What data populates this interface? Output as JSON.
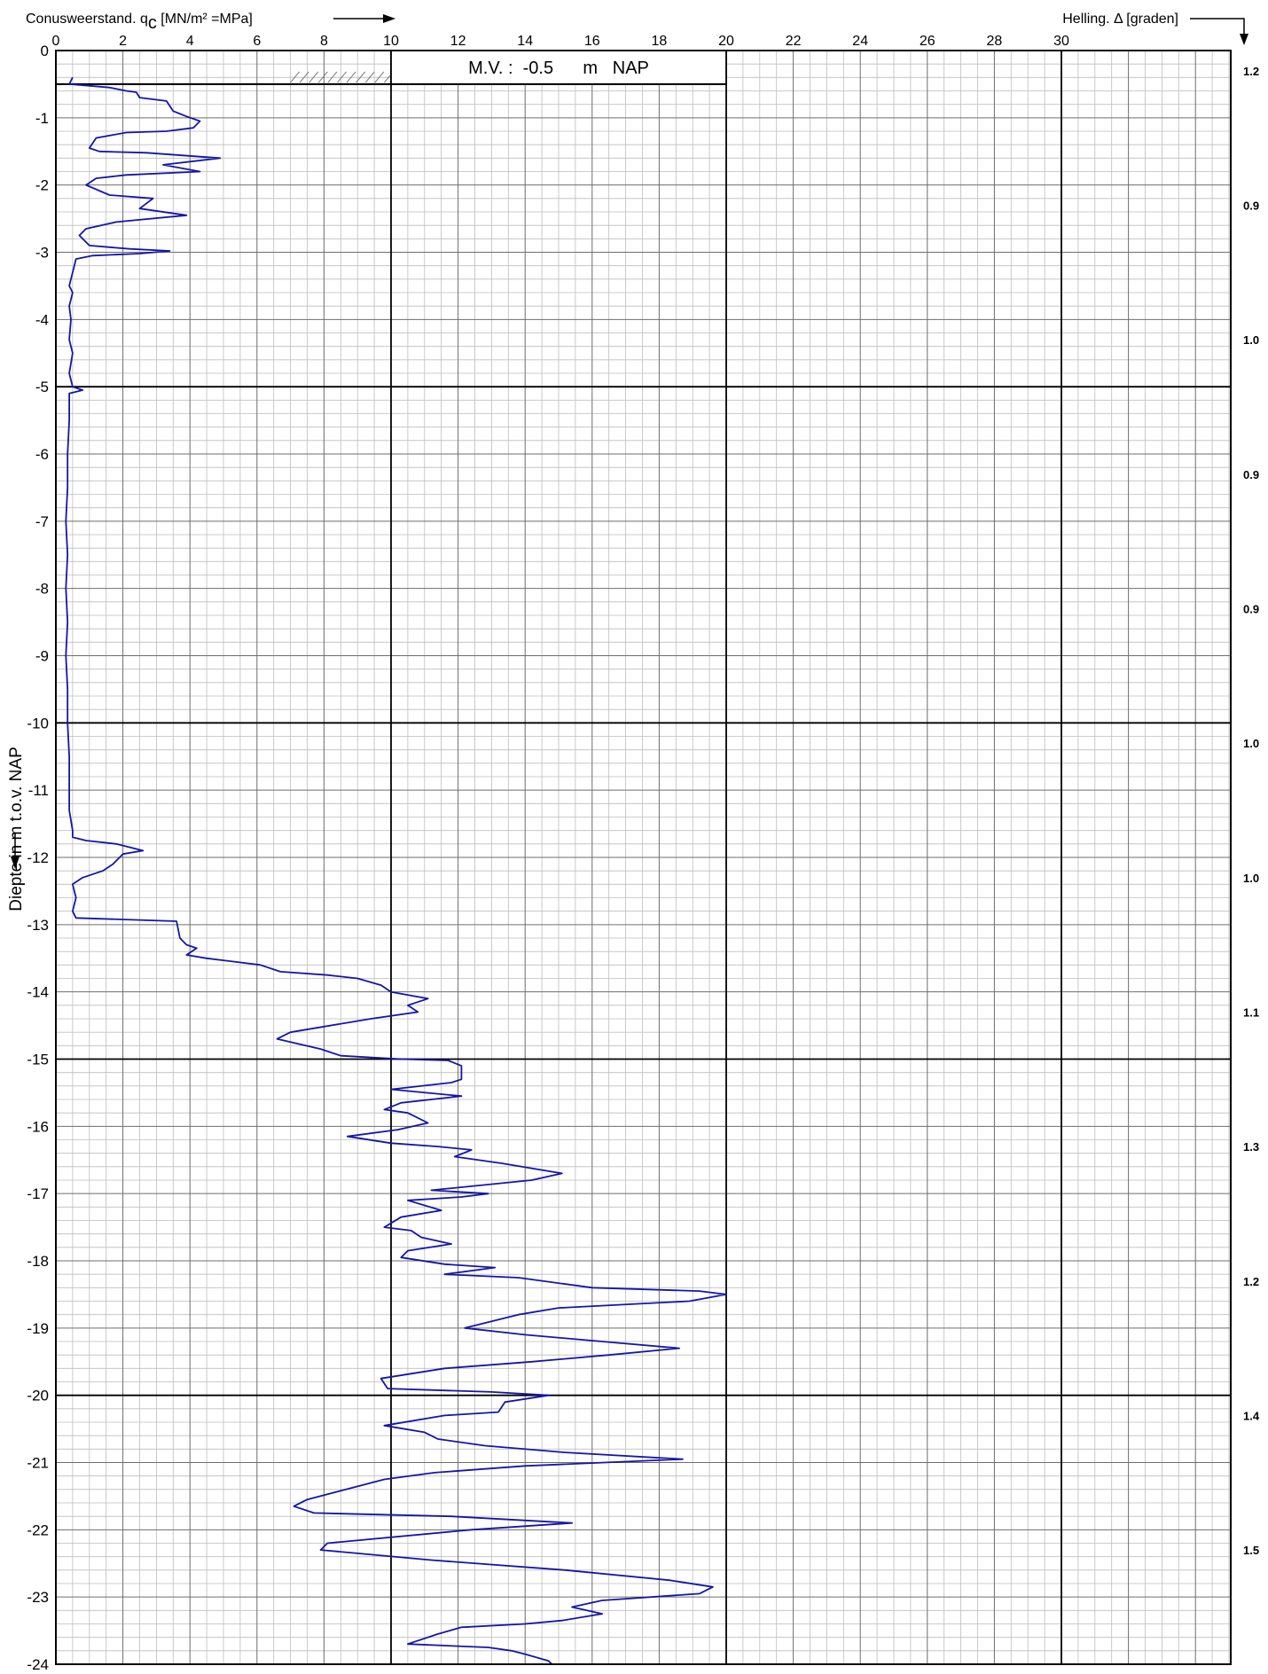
{
  "chart_data": {
    "type": "line",
    "top_axis_label": "Conusweerstand. q",
    "top_axis_subscript": "c",
    "top_axis_units": " [MN/m² =MPa]",
    "right_axis_label": "Helling. Δ [graden]",
    "y_axis_label": "Diepte in m t.o.v. NAP",
    "mv_label": "M.V. :  -0.5      m   NAP",
    "mv_depth": -0.5,
    "x_ticks": [
      0,
      2,
      4,
      6,
      8,
      10,
      12,
      14,
      16,
      18,
      20,
      22,
      24,
      26,
      28,
      30
    ],
    "y_ticks": [
      0,
      -1,
      -2,
      -3,
      -4,
      -5,
      -6,
      -7,
      -8,
      -9,
      -10,
      -11,
      -12,
      -13,
      -14,
      -15,
      -16,
      -17,
      -18,
      -19,
      -20,
      -21,
      -22,
      -23,
      -24
    ],
    "xlim": [
      0,
      35
    ],
    "ylim": [
      0,
      -24
    ],
    "grid": true,
    "helling_values": [
      {
        "depth": -0.3,
        "value": "1.2"
      },
      {
        "depth": -2.3,
        "value": "0.9"
      },
      {
        "depth": -4.3,
        "value": "1.0"
      },
      {
        "depth": -6.3,
        "value": "0.9"
      },
      {
        "depth": -8.3,
        "value": "0.9"
      },
      {
        "depth": -10.3,
        "value": "1.0"
      },
      {
        "depth": -12.3,
        "value": "1.0"
      },
      {
        "depth": -14.3,
        "value": "1.1"
      },
      {
        "depth": -16.3,
        "value": "1.3"
      },
      {
        "depth": -18.3,
        "value": "1.2"
      },
      {
        "depth": -20.3,
        "value": "1.4"
      },
      {
        "depth": -22.3,
        "value": "1.5"
      }
    ],
    "series": [
      {
        "color": "#1515a8",
        "points": [
          [
            0.5,
            -0.4
          ],
          [
            0.4,
            -0.5
          ],
          [
            1.6,
            -0.55
          ],
          [
            2.1,
            -0.6
          ],
          [
            2.4,
            -0.62
          ],
          [
            2.5,
            -0.7
          ],
          [
            3.3,
            -0.75
          ],
          [
            3.5,
            -0.9
          ],
          [
            3.9,
            -0.98
          ],
          [
            4.3,
            -1.05
          ],
          [
            4.1,
            -1.15
          ],
          [
            3.3,
            -1.2
          ],
          [
            2.1,
            -1.22
          ],
          [
            1.2,
            -1.3
          ],
          [
            1.0,
            -1.45
          ],
          [
            1.3,
            -1.5
          ],
          [
            2.7,
            -1.52
          ],
          [
            4.9,
            -1.6
          ],
          [
            3.2,
            -1.7
          ],
          [
            4.3,
            -1.8
          ],
          [
            2.1,
            -1.85
          ],
          [
            1.2,
            -1.9
          ],
          [
            0.9,
            -2.0
          ],
          [
            1.6,
            -2.15
          ],
          [
            2.9,
            -2.2
          ],
          [
            2.5,
            -2.35
          ],
          [
            3.9,
            -2.45
          ],
          [
            1.8,
            -2.55
          ],
          [
            0.9,
            -2.65
          ],
          [
            0.7,
            -2.75
          ],
          [
            1.0,
            -2.9
          ],
          [
            2.2,
            -2.95
          ],
          [
            3.4,
            -2.98
          ],
          [
            2.5,
            -3.02
          ],
          [
            1.1,
            -3.05
          ],
          [
            0.6,
            -3.1
          ],
          [
            0.5,
            -3.3
          ],
          [
            0.4,
            -3.5
          ],
          [
            0.5,
            -3.6
          ],
          [
            0.4,
            -3.8
          ],
          [
            0.45,
            -4.0
          ],
          [
            0.4,
            -4.3
          ],
          [
            0.5,
            -4.5
          ],
          [
            0.4,
            -4.8
          ],
          [
            0.5,
            -5.0
          ],
          [
            0.8,
            -5.05
          ],
          [
            0.4,
            -5.1
          ],
          [
            0.4,
            -5.5
          ],
          [
            0.35,
            -6.0
          ],
          [
            0.35,
            -6.5
          ],
          [
            0.3,
            -7.0
          ],
          [
            0.35,
            -7.5
          ],
          [
            0.3,
            -8.0
          ],
          [
            0.35,
            -8.5
          ],
          [
            0.3,
            -9.0
          ],
          [
            0.35,
            -9.5
          ],
          [
            0.35,
            -10.0
          ],
          [
            0.4,
            -10.5
          ],
          [
            0.4,
            -11.0
          ],
          [
            0.4,
            -11.3
          ],
          [
            0.5,
            -11.6
          ],
          [
            0.5,
            -11.7
          ],
          [
            0.9,
            -11.75
          ],
          [
            1.8,
            -11.8
          ],
          [
            2.6,
            -11.9
          ],
          [
            2.0,
            -11.95
          ],
          [
            1.7,
            -12.1
          ],
          [
            1.4,
            -12.2
          ],
          [
            0.8,
            -12.3
          ],
          [
            0.5,
            -12.4
          ],
          [
            0.6,
            -12.6
          ],
          [
            0.5,
            -12.8
          ],
          [
            0.6,
            -12.9
          ],
          [
            3.6,
            -12.95
          ],
          [
            3.7,
            -13.2
          ],
          [
            3.9,
            -13.3
          ],
          [
            4.2,
            -13.35
          ],
          [
            3.9,
            -13.45
          ],
          [
            4.5,
            -13.5
          ],
          [
            5.3,
            -13.55
          ],
          [
            6.1,
            -13.6
          ],
          [
            6.7,
            -13.7
          ],
          [
            8.1,
            -13.75
          ],
          [
            9.0,
            -13.8
          ],
          [
            9.7,
            -13.9
          ],
          [
            10.0,
            -14.0
          ],
          [
            11.1,
            -14.1
          ],
          [
            10.5,
            -14.2
          ],
          [
            10.8,
            -14.3
          ],
          [
            9.4,
            -14.4
          ],
          [
            7.0,
            -14.6
          ],
          [
            6.6,
            -14.7
          ],
          [
            7.9,
            -14.85
          ],
          [
            8.5,
            -14.95
          ],
          [
            10.3,
            -15.0
          ],
          [
            11.7,
            -15.02
          ],
          [
            12.1,
            -15.1
          ],
          [
            12.1,
            -15.3
          ],
          [
            11.8,
            -15.35
          ],
          [
            10.0,
            -15.45
          ],
          [
            12.1,
            -15.55
          ],
          [
            10.3,
            -15.65
          ],
          [
            9.8,
            -15.75
          ],
          [
            10.5,
            -15.8
          ],
          [
            11.1,
            -15.95
          ],
          [
            10.2,
            -16.05
          ],
          [
            8.7,
            -16.15
          ],
          [
            10.0,
            -16.25
          ],
          [
            11.4,
            -16.3
          ],
          [
            12.4,
            -16.35
          ],
          [
            11.9,
            -16.45
          ],
          [
            13.3,
            -16.55
          ],
          [
            15.1,
            -16.7
          ],
          [
            14.2,
            -16.8
          ],
          [
            11.2,
            -16.95
          ],
          [
            12.9,
            -17.0
          ],
          [
            12.1,
            -17.05
          ],
          [
            10.5,
            -17.1
          ],
          [
            11.5,
            -17.25
          ],
          [
            10.3,
            -17.35
          ],
          [
            9.8,
            -17.5
          ],
          [
            10.6,
            -17.55
          ],
          [
            10.9,
            -17.65
          ],
          [
            11.8,
            -17.75
          ],
          [
            10.5,
            -17.85
          ],
          [
            10.3,
            -17.95
          ],
          [
            11.6,
            -18.05
          ],
          [
            13.1,
            -18.1
          ],
          [
            11.6,
            -18.2
          ],
          [
            13.8,
            -18.25
          ],
          [
            16.0,
            -18.4
          ],
          [
            19.2,
            -18.45
          ],
          [
            20.0,
            -18.5
          ],
          [
            18.9,
            -18.6
          ],
          [
            15.0,
            -18.7
          ],
          [
            13.8,
            -18.8
          ],
          [
            12.2,
            -19.0
          ],
          [
            14.0,
            -19.1
          ],
          [
            16.3,
            -19.2
          ],
          [
            18.6,
            -19.3
          ],
          [
            16.5,
            -19.4
          ],
          [
            14.2,
            -19.5
          ],
          [
            11.6,
            -19.6
          ],
          [
            9.7,
            -19.75
          ],
          [
            9.9,
            -19.9
          ],
          [
            13.0,
            -19.95
          ],
          [
            14.7,
            -20.0
          ],
          [
            13.4,
            -20.1
          ],
          [
            13.2,
            -20.25
          ],
          [
            11.6,
            -20.3
          ],
          [
            9.8,
            -20.45
          ],
          [
            11.0,
            -20.55
          ],
          [
            11.4,
            -20.65
          ],
          [
            12.8,
            -20.75
          ],
          [
            15.2,
            -20.85
          ],
          [
            18.7,
            -20.95
          ],
          [
            14.0,
            -21.05
          ],
          [
            11.3,
            -21.15
          ],
          [
            9.8,
            -21.25
          ],
          [
            7.5,
            -21.55
          ],
          [
            7.1,
            -21.65
          ],
          [
            7.7,
            -21.75
          ],
          [
            11.8,
            -21.8
          ],
          [
            15.4,
            -21.9
          ],
          [
            12.4,
            -22.0
          ],
          [
            8.1,
            -22.2
          ],
          [
            7.9,
            -22.3
          ],
          [
            11.2,
            -22.45
          ],
          [
            15.2,
            -22.6
          ],
          [
            18.3,
            -22.75
          ],
          [
            19.6,
            -22.85
          ],
          [
            19.2,
            -22.95
          ],
          [
            16.3,
            -23.05
          ],
          [
            15.4,
            -23.15
          ],
          [
            16.3,
            -23.25
          ],
          [
            15.1,
            -23.35
          ],
          [
            14.0,
            -23.4
          ],
          [
            12.1,
            -23.45
          ],
          [
            11.4,
            -23.55
          ],
          [
            10.5,
            -23.7
          ],
          [
            12.9,
            -23.75
          ],
          [
            13.6,
            -23.8
          ],
          [
            14.0,
            -23.85
          ],
          [
            14.7,
            -23.95
          ],
          [
            14.8,
            -24.0
          ]
        ]
      }
    ]
  }
}
